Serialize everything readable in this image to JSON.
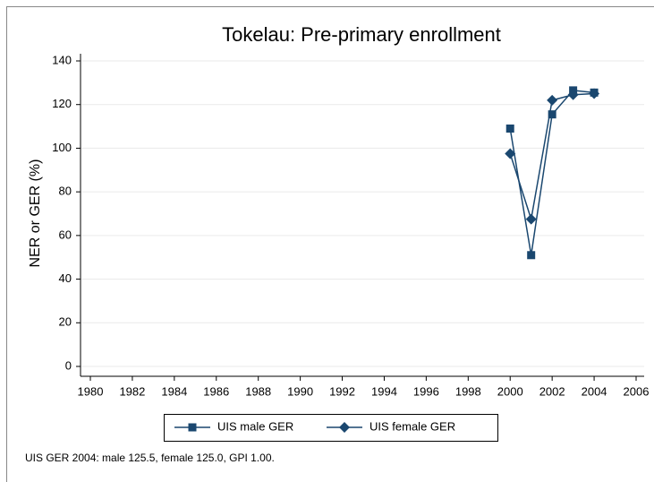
{
  "chart_data": {
    "type": "line",
    "title": "Tokelau: Pre-primary enrollment",
    "ylabel": "NER or GER (%)",
    "note": "UIS GER 2004: male 125.5, female 125.0, GPI 1.00.",
    "x": [
      2000,
      2001,
      2002,
      2003,
      2004
    ],
    "series": [
      {
        "name": "UIS male GER",
        "color": "#1a476f",
        "marker": "square",
        "values": [
          109,
          51,
          115.5,
          126.5,
          125.5
        ]
      },
      {
        "name": "UIS female GER",
        "color": "#1a476f",
        "marker": "diamond",
        "values": [
          97.5,
          67.5,
          122,
          124.5,
          125.0
        ]
      }
    ],
    "xlim": [
      1980,
      2006
    ],
    "xticks": [
      1980,
      1982,
      1984,
      1986,
      1988,
      1990,
      1992,
      1994,
      1996,
      1998,
      2000,
      2002,
      2004,
      2006
    ],
    "ylim": [
      0,
      140
    ],
    "yticks": [
      0,
      20,
      40,
      60,
      80,
      100,
      120,
      140
    ],
    "grid": true,
    "legend": "bottom"
  }
}
